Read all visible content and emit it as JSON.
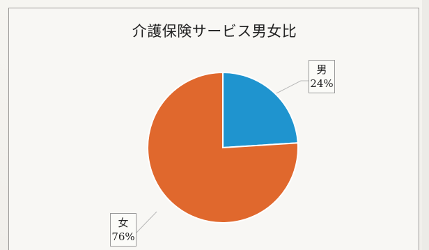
{
  "chart_data": {
    "type": "pie",
    "title": "介護保険サービス男女比",
    "categories": [
      "男",
      "女"
    ],
    "values": [
      24,
      76
    ],
    "value_labels": [
      "24%",
      "76%"
    ],
    "colors": [
      "#1f94cf",
      "#e0682d"
    ],
    "legend": "none"
  }
}
